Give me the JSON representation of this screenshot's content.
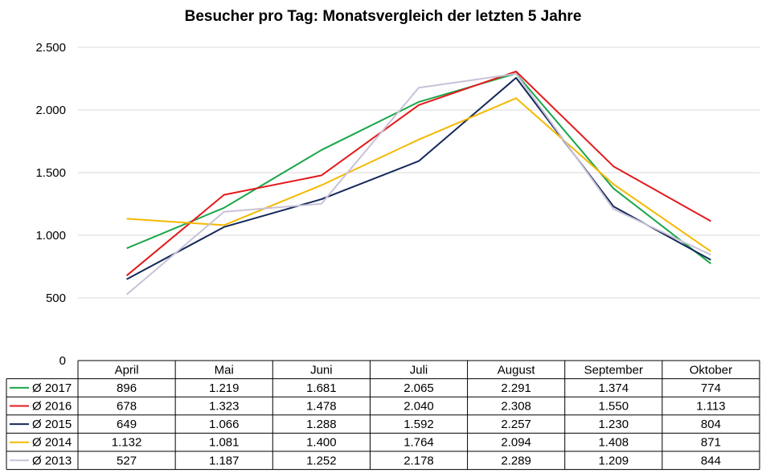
{
  "chart_data": {
    "type": "line",
    "title": "Besucher pro Tag: Monatsvergleich der letzten 5 Jahre",
    "categories": [
      "April",
      "Mai",
      "Juni",
      "Juli",
      "August",
      "September",
      "Oktober"
    ],
    "ylim": [
      0,
      2500
    ],
    "yticks": [
      0,
      500,
      1000,
      1500,
      2000,
      2500
    ],
    "ytick_labels": [
      "0",
      "500",
      "1.000",
      "1.500",
      "2.000",
      "2.500"
    ],
    "grid": true,
    "legend": "data table below the chart",
    "series": [
      {
        "name": "Ø 2017",
        "color": "#1aa64a",
        "values": [
          896,
          1219,
          1681,
          2065,
          2291,
          1374,
          774
        ],
        "labels": [
          "896",
          "1.219",
          "1.681",
          "2.065",
          "2.291",
          "1.374",
          "774"
        ]
      },
      {
        "name": "Ø 2016",
        "color": "#e41a1c",
        "values": [
          678,
          1323,
          1478,
          2040,
          2308,
          1550,
          1113
        ],
        "labels": [
          "678",
          "1.323",
          "1.478",
          "2.040",
          "2.308",
          "1.550",
          "1.113"
        ]
      },
      {
        "name": "Ø 2015",
        "color": "#14285a",
        "values": [
          649,
          1066,
          1288,
          1592,
          2257,
          1230,
          804
        ],
        "labels": [
          "649",
          "1.066",
          "1.288",
          "1.592",
          "2.257",
          "1.230",
          "804"
        ]
      },
      {
        "name": "Ø 2014",
        "color": "#f5b800",
        "values": [
          1132,
          1081,
          1400,
          1764,
          2094,
          1408,
          871
        ],
        "labels": [
          "1.132",
          "1.081",
          "1.400",
          "1.764",
          "2.094",
          "1.408",
          "871"
        ]
      },
      {
        "name": "Ø 2013",
        "color": "#c9c2d8",
        "values": [
          527,
          1187,
          1252,
          2178,
          2289,
          1209,
          844
        ],
        "labels": [
          "527",
          "1.187",
          "1.252",
          "2.178",
          "2.289",
          "1.209",
          "844"
        ]
      }
    ]
  }
}
